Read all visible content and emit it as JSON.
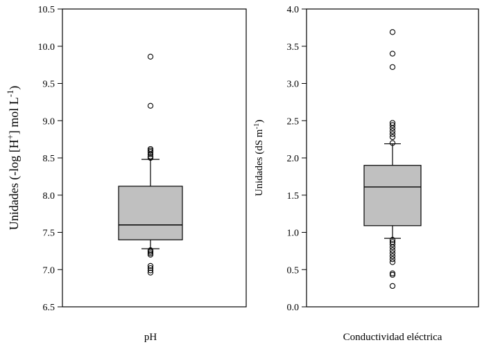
{
  "chart_data": [
    {
      "type": "box",
      "ylabel": "Unidades (-log [H⁺] mol L⁻¹)",
      "ylabel_parts": [
        {
          "text": "Unidades (-log [H",
          "sup": false
        },
        {
          "text": "+",
          "sup": true
        },
        {
          "text": "] mol L",
          "sup": false
        },
        {
          "text": "-1",
          "sup": true
        },
        {
          "text": ")",
          "sup": false
        }
      ],
      "category": "pH",
      "ylim": [
        6.5,
        10.5
      ],
      "yticks": [
        6.5,
        7.0,
        7.5,
        8.0,
        8.5,
        9.0,
        9.5,
        10.0,
        10.5
      ],
      "ytick_labels": [
        "6.5",
        "7.0",
        "7.5",
        "8.0",
        "8.5",
        "9.0",
        "9.5",
        "10.0",
        "10.5"
      ],
      "whisker_low": 7.28,
      "q1": 7.4,
      "median": 7.6,
      "q3": 8.12,
      "whisker_high": 8.48,
      "outliers": [
        9.86,
        9.2,
        8.62,
        8.6,
        8.58,
        8.55,
        8.52,
        8.5,
        7.26,
        7.24,
        7.22,
        7.2,
        7.05,
        7.02,
        6.99,
        6.96
      ]
    },
    {
      "type": "box",
      "ylabel": "Unidades (dS m⁻¹)",
      "ylabel_parts": [
        {
          "text": "Unidades (dS m",
          "sup": false
        },
        {
          "text": "-1",
          "sup": true
        },
        {
          "text": ")",
          "sup": false
        }
      ],
      "category": "Conductividad eléctrica",
      "ylim": [
        0.0,
        4.0
      ],
      "yticks": [
        0.0,
        0.5,
        1.0,
        1.5,
        2.0,
        2.5,
        3.0,
        3.5,
        4.0
      ],
      "ytick_labels": [
        "0.0",
        "0.5",
        "1.0",
        "1.5",
        "2.0",
        "2.5",
        "3.0",
        "3.5",
        "4.0"
      ],
      "whisker_low": 0.92,
      "q1": 1.09,
      "median": 1.61,
      "q3": 1.9,
      "whisker_high": 2.19,
      "outliers": [
        3.69,
        3.4,
        3.22,
        2.47,
        2.44,
        2.4,
        2.36,
        2.32,
        2.28,
        2.2,
        0.9,
        0.87,
        0.84,
        0.8,
        0.76,
        0.72,
        0.68,
        0.64,
        0.6,
        0.45,
        0.43,
        0.28
      ]
    }
  ]
}
